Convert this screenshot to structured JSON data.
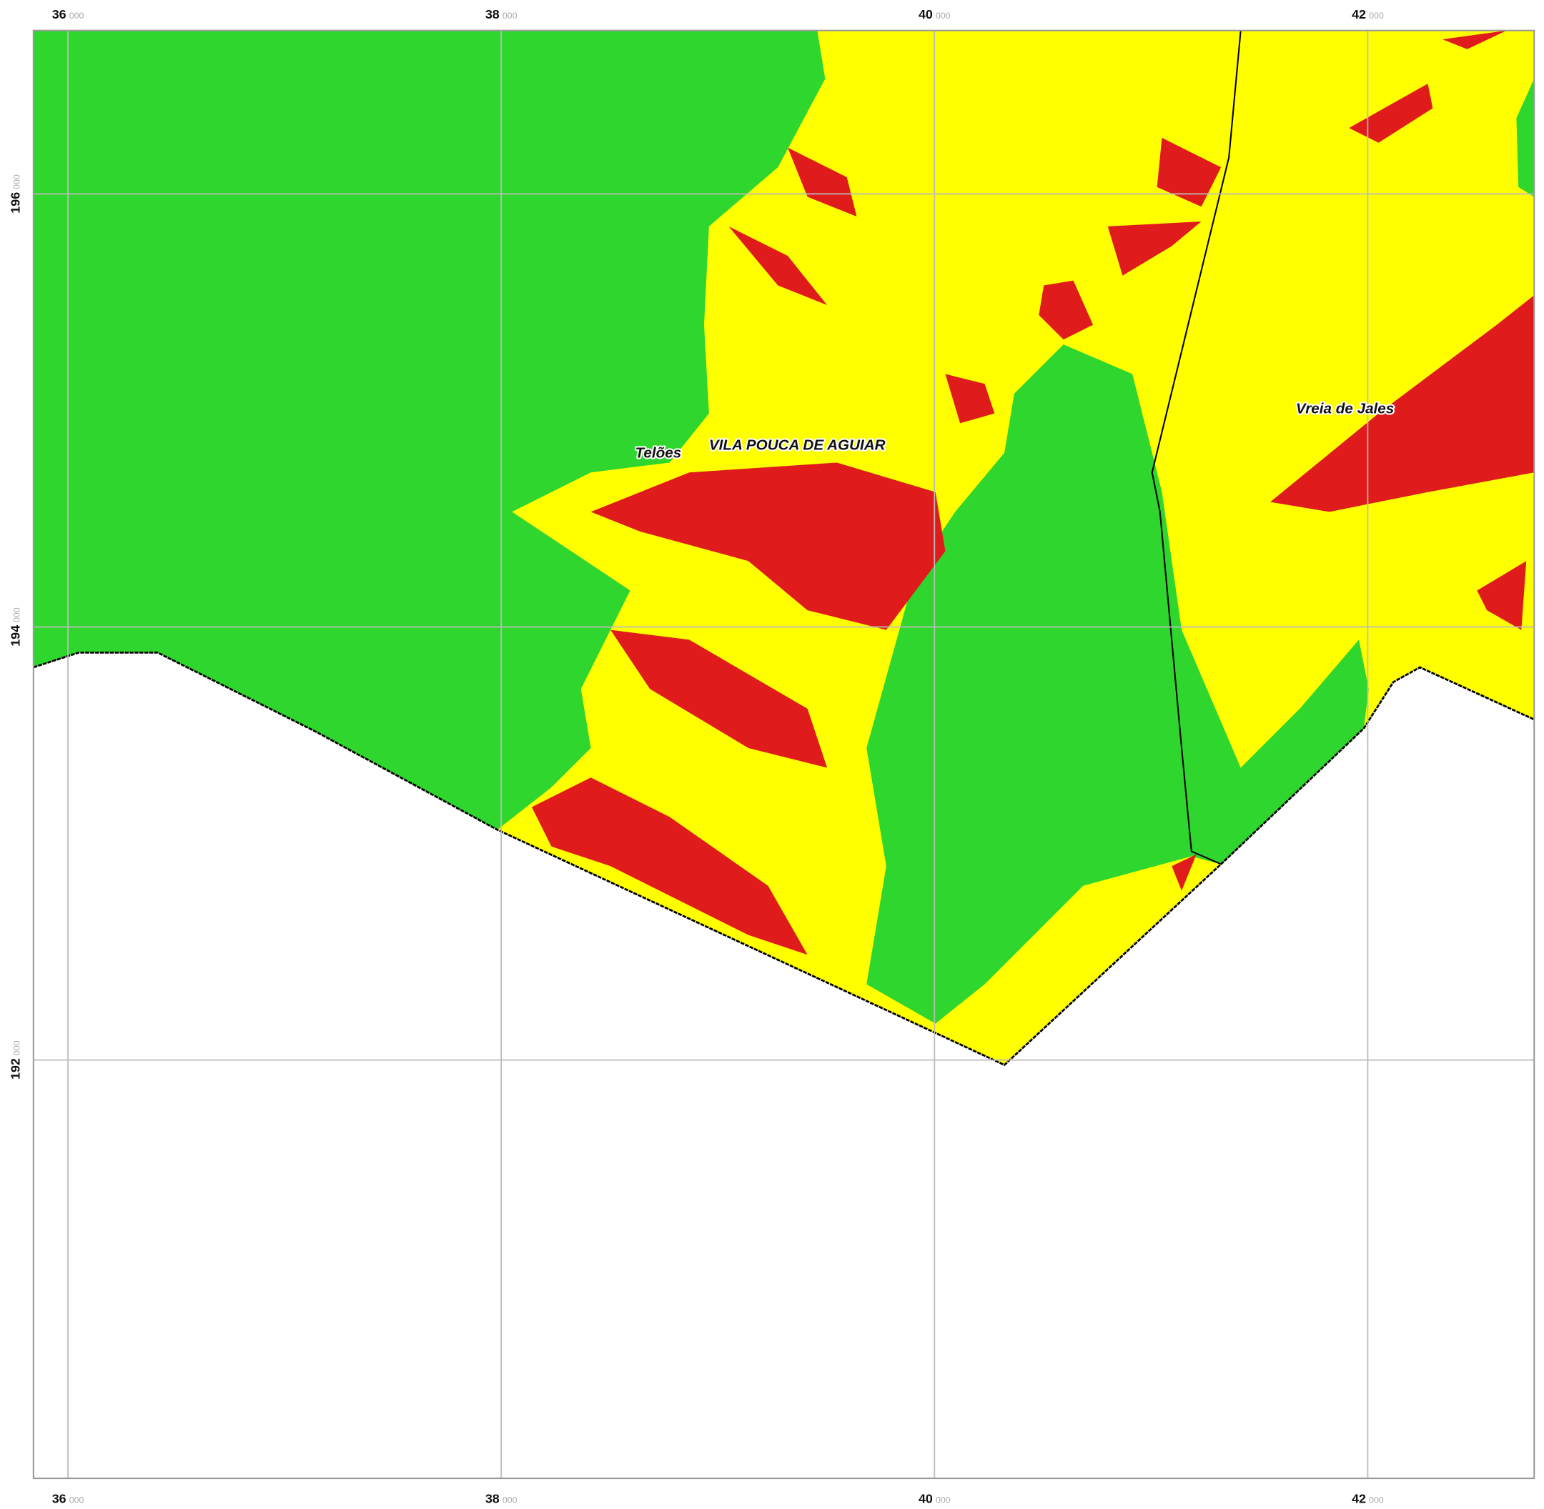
{
  "grid": {
    "x_ticks": [
      {
        "label": "36",
        "suffix": "000"
      },
      {
        "label": "38",
        "suffix": "000"
      },
      {
        "label": "40",
        "suffix": "000"
      },
      {
        "label": "42",
        "suffix": "000"
      }
    ],
    "y_ticks": [
      {
        "label": "196",
        "suffix": "000"
      },
      {
        "label": "194",
        "suffix": "000"
      },
      {
        "label": "192",
        "suffix": "000"
      }
    ]
  },
  "places": [
    {
      "name": "Telões"
    },
    {
      "name": "VILA POUCA DE AGUIAR"
    },
    {
      "name": "Vreia de Jales"
    }
  ]
}
